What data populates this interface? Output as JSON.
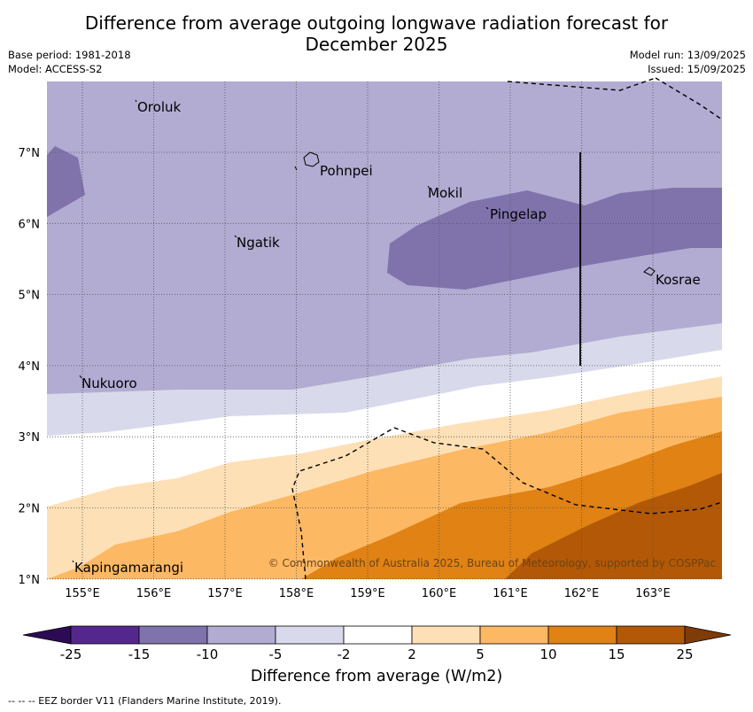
{
  "title_line1": "Difference from average outgoing longwave radiation forecast for",
  "title_line2": "December 2025",
  "base_period": "Base period: 1981-2018",
  "model": "Model: ACCESS-S2",
  "model_run": "Model run: 13/09/2025",
  "issued": "Issued: 15/09/2025",
  "copyright": "© Commonwealth of Australia 2025, Bureau of Meteorology, supported by COSPPac",
  "lon_ticks": [
    "155°E",
    "156°E",
    "157°E",
    "158°E",
    "159°E",
    "160°E",
    "161°E",
    "162°E",
    "163°E"
  ],
  "lat_ticks": [
    "7°N",
    "6°N",
    "5°N",
    "4°N",
    "3°N",
    "2°N",
    "1°N"
  ],
  "places": [
    "Oroluk",
    "Pohnpei",
    "Mokil",
    "Pingelap",
    "Ngatik",
    "Kosrae",
    "Nukuoro",
    "Kapingamarangi"
  ],
  "colorbar": {
    "tick_labels": [
      "-25",
      "-15",
      "-10",
      "-5",
      "-2",
      "2",
      "5",
      "10",
      "15",
      "25"
    ],
    "colors": [
      "#2d0a55",
      "#54278f",
      "#8073ac",
      "#b2abd2",
      "#d8daeb",
      "#ffffff",
      "#fee0b6",
      "#fdb863",
      "#e08214",
      "#b35806",
      "#7f3b08"
    ],
    "label": "Difference from average (W/m2)"
  },
  "footnote": "-- -- -- EEZ border V11 (Flanders Marine Institute, 2019)."
}
